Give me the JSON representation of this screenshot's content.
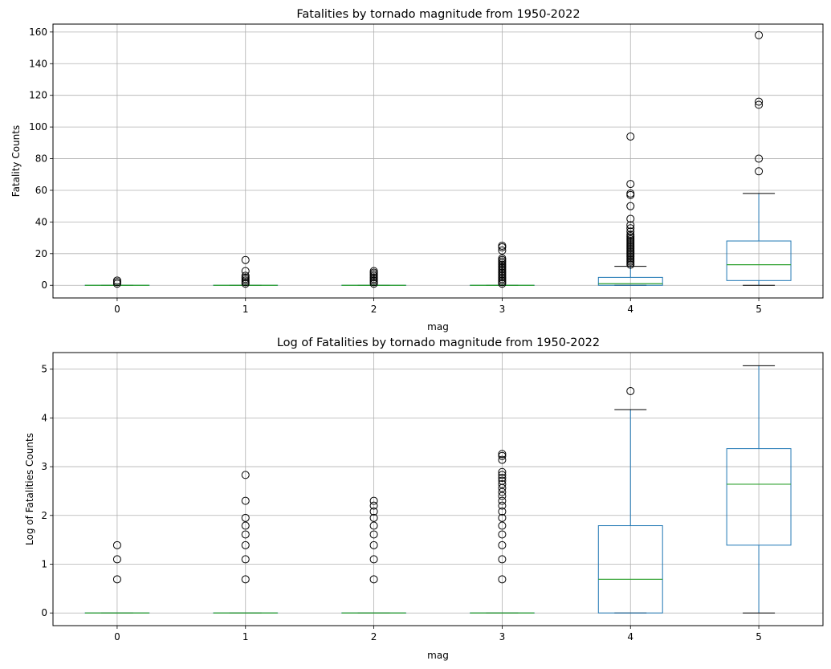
{
  "chart_data": [
    {
      "type": "box",
      "title": "Fatalities by tornado magnitude from 1950-2022",
      "xlabel": "mag",
      "ylabel": "Fatality Counts",
      "categories": [
        "0",
        "1",
        "2",
        "3",
        "4",
        "5"
      ],
      "ylim": [
        -8,
        165
      ],
      "yticks": [
        0,
        20,
        40,
        60,
        80,
        100,
        120,
        140,
        160
      ],
      "grid": true,
      "colors": {
        "box": "#1f77b4",
        "median": "#2ca02c",
        "whisker": "#1f77b4",
        "cap": "#000000",
        "flier": "#000000",
        "grid": "#b0b0b0"
      },
      "boxes": [
        {
          "category": "0",
          "whislo": 0,
          "q1": 0,
          "median": 0,
          "q3": 0,
          "whishi": 0,
          "fliers": [
            1,
            2,
            3
          ]
        },
        {
          "category": "1",
          "whislo": 0,
          "q1": 0,
          "median": 0,
          "q3": 0,
          "whishi": 0,
          "fliers": [
            1,
            2,
            3,
            4,
            5,
            6,
            9,
            16
          ]
        },
        {
          "category": "2",
          "whislo": 0,
          "q1": 0,
          "median": 0,
          "q3": 0,
          "whishi": 0,
          "fliers": [
            1,
            2,
            3,
            4,
            5,
            6,
            7,
            8,
            9
          ]
        },
        {
          "category": "3",
          "whislo": 0,
          "q1": 0,
          "median": 0,
          "q3": 0,
          "whishi": 0,
          "fliers": [
            1,
            2,
            3,
            4,
            5,
            6,
            7,
            8,
            9,
            10,
            11,
            12,
            13,
            14,
            15,
            16,
            17,
            22,
            24,
            25
          ]
        },
        {
          "category": "4",
          "whislo": 0,
          "q1": 0,
          "median": 1,
          "q3": 5,
          "whishi": 12,
          "fliers": [
            13,
            14,
            15,
            16,
            17,
            18,
            19,
            20,
            21,
            22,
            23,
            24,
            25,
            26,
            27,
            28,
            29,
            30,
            31,
            32,
            34,
            36,
            38,
            42,
            50,
            57,
            58,
            64,
            94
          ]
        },
        {
          "category": "5",
          "whislo": 0,
          "q1": 3,
          "median": 13,
          "q3": 28,
          "whishi": 58,
          "fliers": [
            72,
            80,
            114,
            116,
            158
          ]
        }
      ]
    },
    {
      "type": "box",
      "title": "Log of Fatalities by tornado magnitude from 1950-2022",
      "xlabel": "mag",
      "ylabel": "Log of Fatalities Counts",
      "categories": [
        "0",
        "1",
        "2",
        "3",
        "4",
        "5"
      ],
      "ylim": [
        -0.26,
        5.34
      ],
      "yticks": [
        0,
        1,
        2,
        3,
        4,
        5
      ],
      "grid": true,
      "colors": {
        "box": "#1f77b4",
        "median": "#2ca02c",
        "whisker": "#1f77b4",
        "cap": "#000000",
        "flier": "#000000",
        "grid": "#b0b0b0"
      },
      "boxes": [
        {
          "category": "0",
          "whislo": 0,
          "q1": 0,
          "median": 0,
          "q3": 0,
          "whishi": 0,
          "fliers": [
            0.69,
            1.1,
            1.39
          ]
        },
        {
          "category": "1",
          "whislo": 0,
          "q1": 0,
          "median": 0,
          "q3": 0,
          "whishi": 0,
          "fliers": [
            0.69,
            1.1,
            1.39,
            1.61,
            1.79,
            1.95,
            2.3,
            2.83
          ]
        },
        {
          "category": "2",
          "whislo": 0,
          "q1": 0,
          "median": 0,
          "q3": 0,
          "whishi": 0,
          "fliers": [
            0.69,
            1.1,
            1.39,
            1.61,
            1.79,
            1.95,
            2.08,
            2.2,
            2.3
          ]
        },
        {
          "category": "3",
          "whislo": 0,
          "q1": 0,
          "median": 0,
          "q3": 0,
          "whishi": 0,
          "fliers": [
            0.69,
            1.1,
            1.39,
            1.61,
            1.79,
            1.95,
            2.08,
            2.2,
            2.3,
            2.4,
            2.48,
            2.56,
            2.64,
            2.71,
            2.77,
            2.83,
            2.89,
            3.14,
            3.22,
            3.26
          ]
        },
        {
          "category": "4",
          "whislo": 0,
          "q1": 0,
          "median": 0.69,
          "q3": 1.79,
          "whishi": 4.17,
          "fliers": [
            4.55
          ]
        },
        {
          "category": "5",
          "whislo": 0,
          "q1": 1.39,
          "median": 2.64,
          "q3": 3.37,
          "whishi": 5.07,
          "fliers": []
        }
      ]
    }
  ]
}
